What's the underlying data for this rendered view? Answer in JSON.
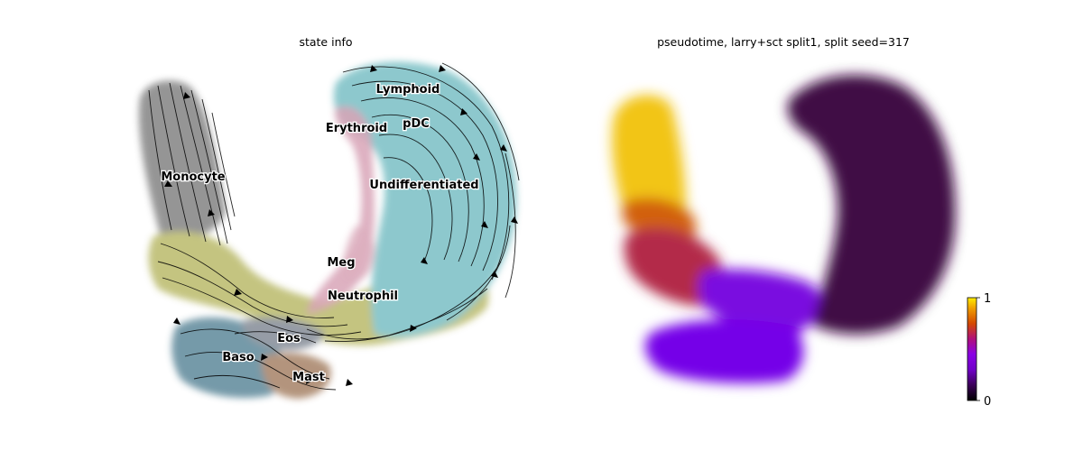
{
  "chart_data": [
    {
      "type": "scatter",
      "title": "state info",
      "overlay": "velocity streamlines with arrowheads",
      "legend": "labels on data",
      "grid": false,
      "axes_visible": false,
      "colors": {
        "Monocyte": "#8c8c8c",
        "Neutrophil": "#bdbd73",
        "Baso": "#6c93a3",
        "Undifferentiated": "#82c3c8",
        "Lymphoid": "#82c3c8",
        "pDC": "#82c3c8",
        "Erythroid": "#d39aad",
        "Meg": "#d8a7b8",
        "Eos": "#8d93a0",
        "Mast": "#b08f74",
        "streamline": "#000000"
      },
      "cluster_labels": [
        {
          "label": "Lymphoid"
        },
        {
          "label": "pDC"
        },
        {
          "label": "Erythroid"
        },
        {
          "label": "Monocyte"
        },
        {
          "label": "Undifferentiated"
        },
        {
          "label": "Meg"
        },
        {
          "label": "Neutrophil"
        },
        {
          "label": "Eos"
        },
        {
          "label": "Baso"
        },
        {
          "label": "Mast"
        }
      ]
    },
    {
      "type": "scatter",
      "title": "pseudotime, larry+sct split1, split seed=317",
      "colormap": "gnuplot",
      "grid": false,
      "axes_visible": false,
      "colorbar": {
        "min": 0,
        "max": 1,
        "ticks": [
          "1",
          "0"
        ],
        "position": "right"
      }
    }
  ]
}
